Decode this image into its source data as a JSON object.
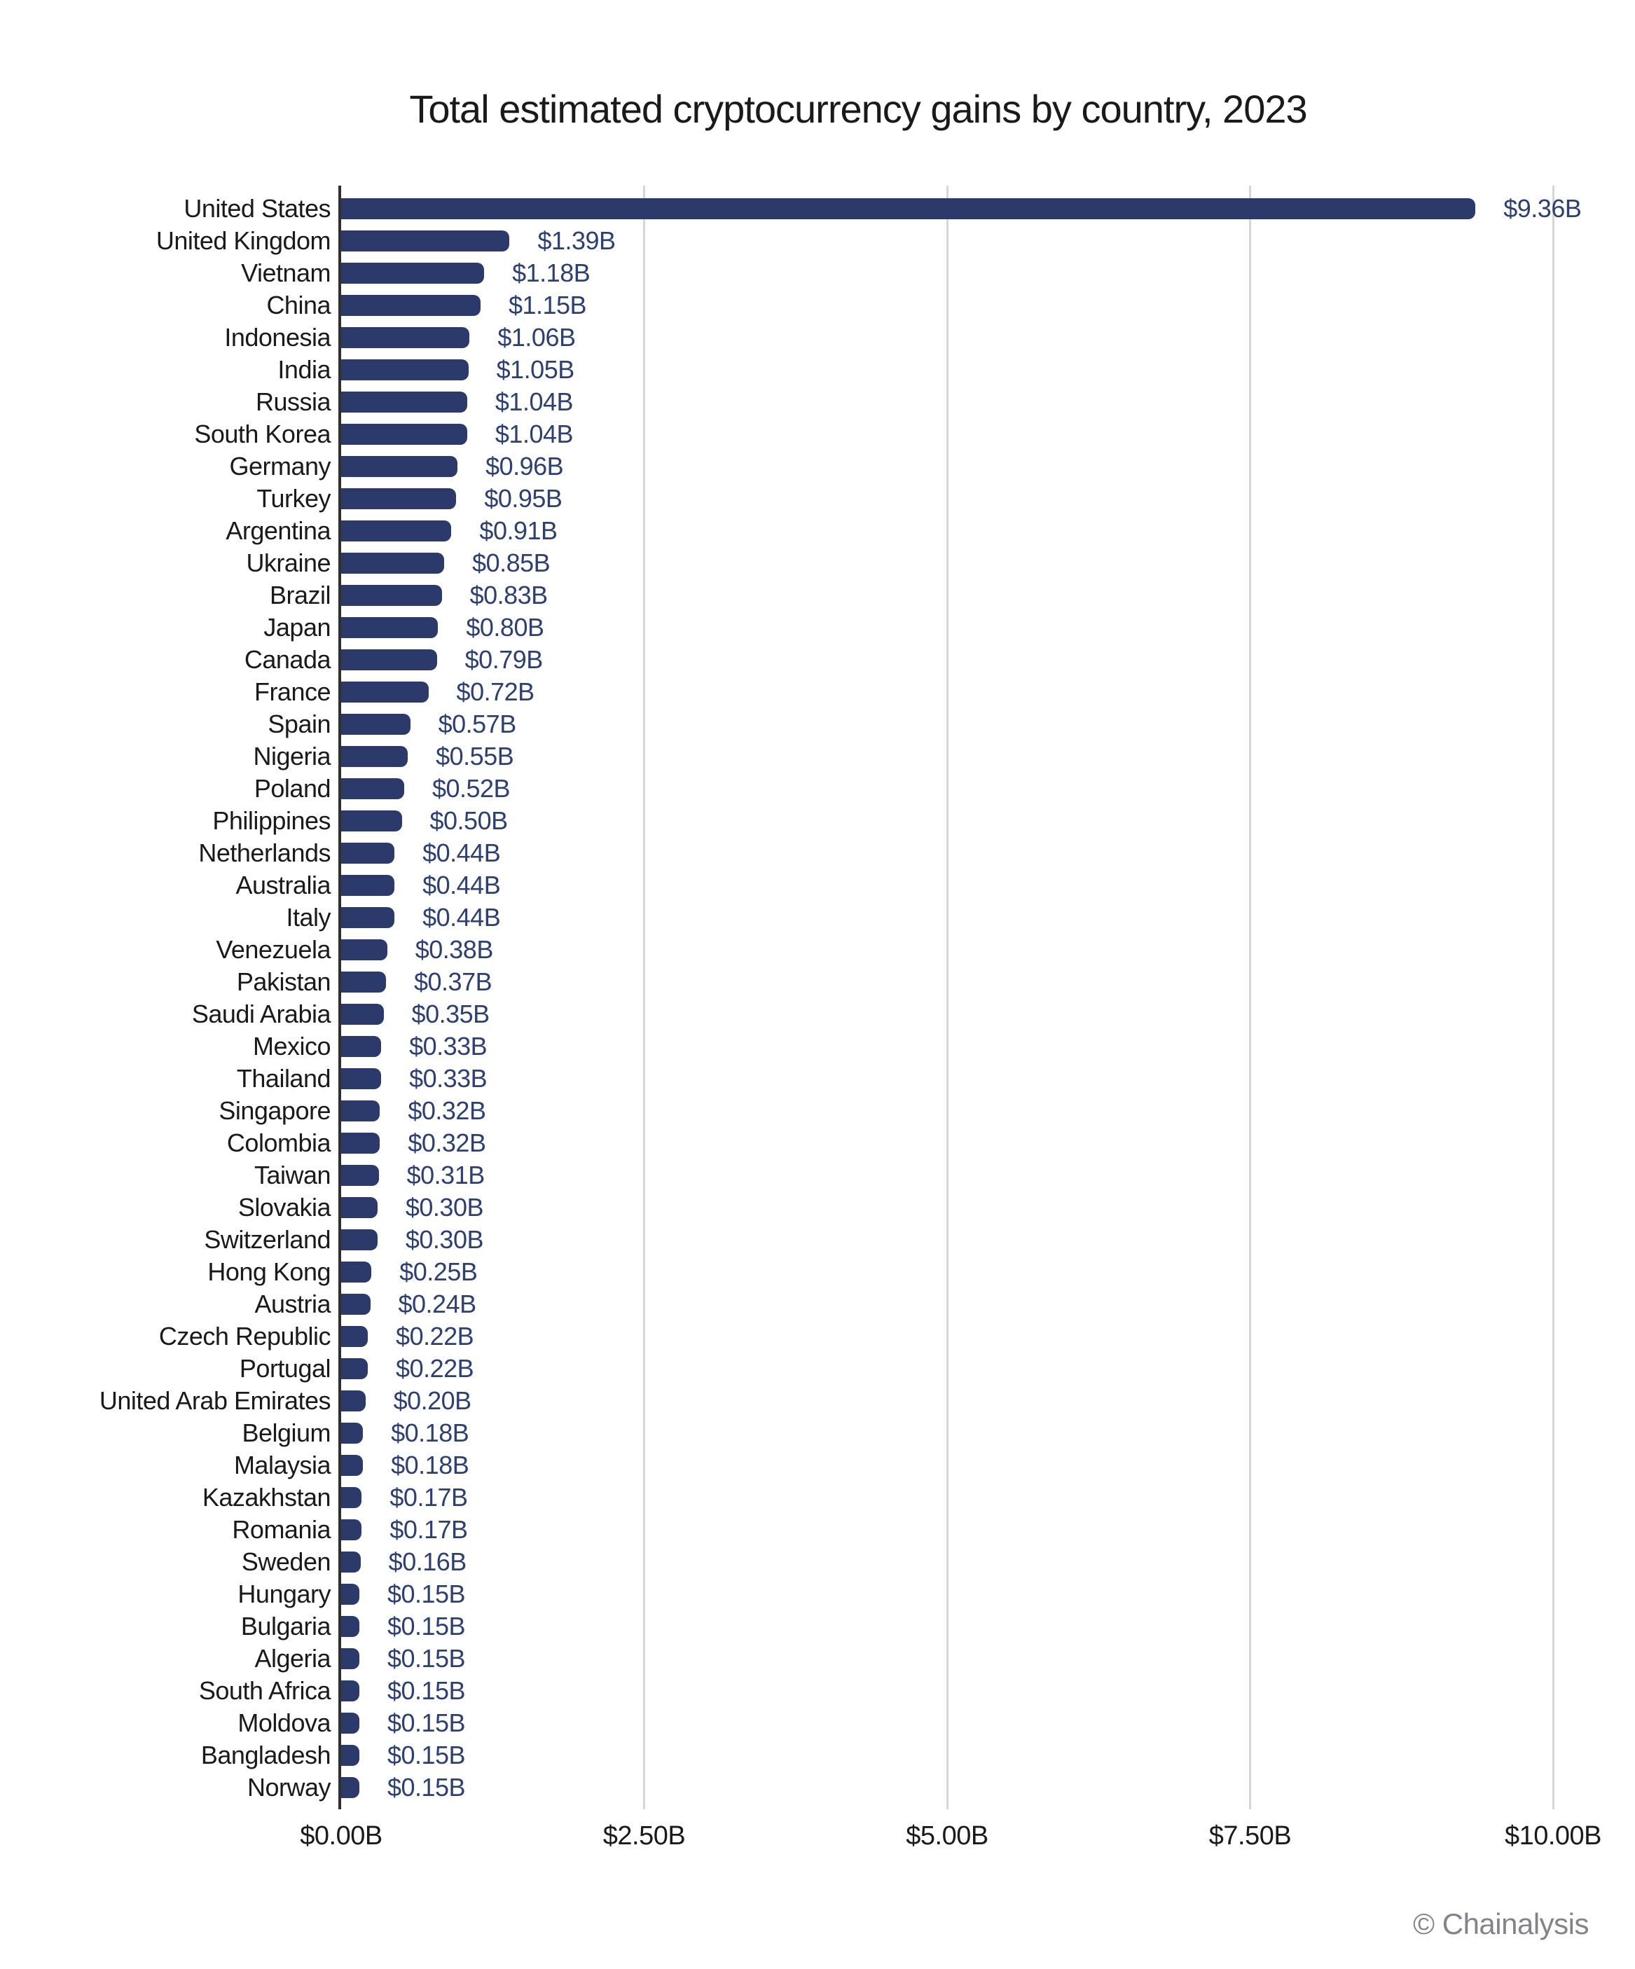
{
  "title": "Total estimated cryptocurrency gains by country, 2023",
  "attribution": "© Chainalysis",
  "colors": {
    "bar": "#2b3a6b",
    "value_label": "#2e4072",
    "text": "#1a1a1a",
    "gridline": "#d6d6d6",
    "axis_line": "#303030",
    "attribution": "#85838a",
    "background": "#ffffff"
  },
  "x_axis": {
    "tick_labels": [
      "$0.00B",
      "$2.50B",
      "$5.00B",
      "$7.50B",
      "$10.00B"
    ],
    "tick_values": [
      0,
      2.5,
      5,
      7.5,
      10
    ]
  },
  "chart_data": {
    "type": "bar",
    "orientation": "horizontal",
    "title": "Total estimated cryptocurrency gains by country, 2023",
    "xlabel": "",
    "ylabel": "",
    "unit": "USD billions",
    "xlim": [
      0,
      10
    ],
    "grid": "vertical",
    "legend": "none",
    "categories": [
      "United States",
      "United Kingdom",
      "Vietnam",
      "China",
      "Indonesia",
      "India",
      "Russia",
      "South Korea",
      "Germany",
      "Turkey",
      "Argentina",
      "Ukraine",
      "Brazil",
      "Japan",
      "Canada",
      "France",
      "Spain",
      "Nigeria",
      "Poland",
      "Philippines",
      "Netherlands",
      "Australia",
      "Italy",
      "Venezuela",
      "Pakistan",
      "Saudi Arabia",
      "Mexico",
      "Thailand",
      "Singapore",
      "Colombia",
      "Taiwan",
      "Slovakia",
      "Switzerland",
      "Hong Kong",
      "Austria",
      "Czech Republic",
      "Portugal",
      "United Arab Emirates",
      "Belgium",
      "Malaysia",
      "Kazakhstan",
      "Romania",
      "Sweden",
      "Hungary",
      "Bulgaria",
      "Algeria",
      "South Africa",
      "Moldova",
      "Bangladesh",
      "Norway"
    ],
    "values": [
      9.36,
      1.39,
      1.18,
      1.15,
      1.06,
      1.05,
      1.04,
      1.04,
      0.96,
      0.95,
      0.91,
      0.85,
      0.83,
      0.8,
      0.79,
      0.72,
      0.57,
      0.55,
      0.52,
      0.5,
      0.44,
      0.44,
      0.44,
      0.38,
      0.37,
      0.35,
      0.33,
      0.33,
      0.32,
      0.32,
      0.31,
      0.3,
      0.3,
      0.25,
      0.24,
      0.22,
      0.22,
      0.2,
      0.18,
      0.18,
      0.17,
      0.17,
      0.16,
      0.15,
      0.15,
      0.15,
      0.15,
      0.15,
      0.15,
      0.15
    ],
    "value_labels": [
      "$9.36B",
      "$1.39B",
      "$1.18B",
      "$1.15B",
      "$1.06B",
      "$1.05B",
      "$1.04B",
      "$1.04B",
      "$0.96B",
      "$0.95B",
      "$0.91B",
      "$0.85B",
      "$0.83B",
      "$0.80B",
      "$0.79B",
      "$0.72B",
      "$0.57B",
      "$0.55B",
      "$0.52B",
      "$0.50B",
      "$0.44B",
      "$0.44B",
      "$0.44B",
      "$0.38B",
      "$0.37B",
      "$0.35B",
      "$0.33B",
      "$0.33B",
      "$0.32B",
      "$0.32B",
      "$0.31B",
      "$0.30B",
      "$0.30B",
      "$0.25B",
      "$0.24B",
      "$0.22B",
      "$0.22B",
      "$0.20B",
      "$0.18B",
      "$0.18B",
      "$0.17B",
      "$0.17B",
      "$0.16B",
      "$0.15B",
      "$0.15B",
      "$0.15B",
      "$0.15B",
      "$0.15B",
      "$0.15B",
      "$0.15B"
    ]
  }
}
